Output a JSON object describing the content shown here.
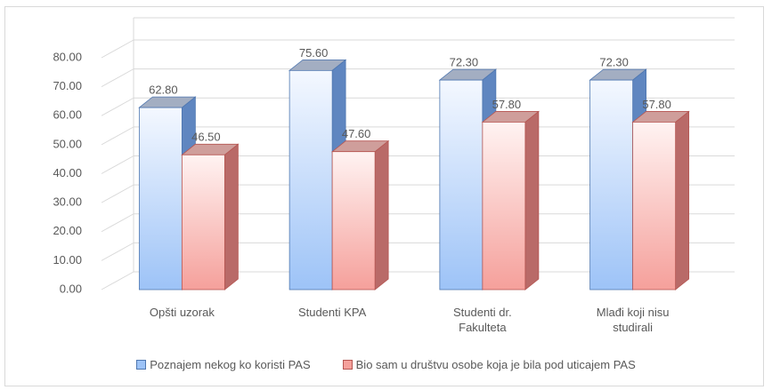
{
  "chart_data": {
    "type": "bar3d",
    "categories": [
      "Opšti uzorak",
      "Studenti KPA",
      "Studenti dr. Fakulteta",
      "Mlađi koji nisu studirali"
    ],
    "series": [
      {
        "name": "Poznajem nekog ko koristi PAS",
        "color": "#9dc3f7",
        "values": [
          62.8,
          75.6,
          72.3,
          72.3
        ],
        "value_labels": [
          "62.80",
          "75.60",
          "72.30",
          "72.30"
        ]
      },
      {
        "name": "Bio sam u društvu osobe koja je bila pod uticajem PAS",
        "color": "#f5a09b",
        "values": [
          46.5,
          47.6,
          57.8,
          57.8
        ],
        "value_labels": [
          "46.50",
          "47.60",
          "57.80",
          "57.80"
        ]
      }
    ],
    "ylim": [
      0,
      80
    ],
    "yticks": [
      {
        "value": 0,
        "label": "0.00"
      },
      {
        "value": 10,
        "label": "10.00"
      },
      {
        "value": 20,
        "label": "20.00"
      },
      {
        "value": 30,
        "label": "30.00"
      },
      {
        "value": 40,
        "label": "40.00"
      },
      {
        "value": 50,
        "label": "50.00"
      },
      {
        "value": 60,
        "label": "60.00"
      },
      {
        "value": 70,
        "label": "70.00"
      },
      {
        "value": 80,
        "label": "80.00"
      }
    ],
    "grid": true,
    "legend": "bottom"
  }
}
